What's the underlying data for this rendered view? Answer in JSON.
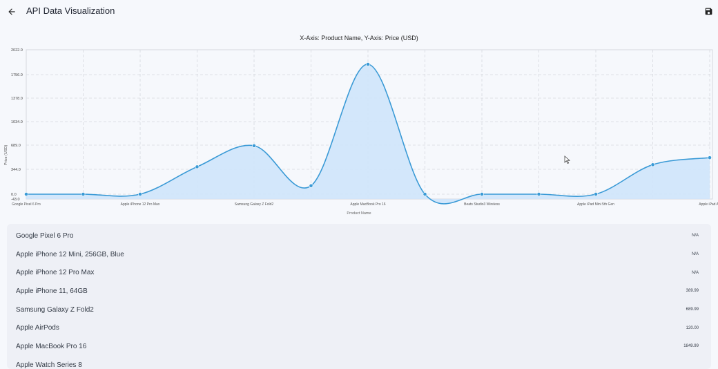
{
  "header": {
    "title": "API Data Visualization",
    "back_icon": "arrow-left-icon",
    "save_icon": "floppy-disk-icon"
  },
  "colors": {
    "line": "#3a9ad6",
    "fill": "#cfe4fb",
    "grid": "#d5d8de",
    "background": "#f6f8fc",
    "card": "#eef0f6"
  },
  "chart_data": {
    "type": "area",
    "title": "X-Axis: Product Name, Y-Axis: Price (USD)",
    "xlabel": "Product Name",
    "ylabel": "Price (USD)",
    "ylim": [
      -43.0,
      2022.0
    ],
    "grid": true,
    "yticks": [
      "-43.0",
      "0.0",
      "344.0",
      "689.0",
      "1034.0",
      "1378.0",
      "1756.0",
      "2022.0"
    ],
    "categories": [
      "Google Pixel 6 Pro",
      "Apple iPhone 12 Mini, 256GB, Blue",
      "Apple iPhone 12 Pro Max",
      "Apple iPhone 11, 64GB",
      "Samsung Galaxy Z Fold2",
      "Apple AirPods",
      "Apple MacBook Pro 16",
      "Apple Watch Series 8",
      "Beats Studio3 Wireless",
      "Apple iPad Mini 5th Gen",
      "Apple iPad Mini 5th Gen",
      "Apple iPad Air",
      "Apple iPad Air"
    ],
    "xticklabels": [
      "Google Pixel 6 Pro",
      "Apple iPhone 12 Pro Max",
      "Samsung Galaxy Z Fold2",
      "Apple MacBook Pro 16",
      "Beats Studio3 Wireless",
      "Apple iPad Mini 5th Gen",
      "Apple iPad Air"
    ],
    "series": [
      {
        "values": [
          0,
          0,
          0,
          389.99,
          689.99,
          120.0,
          1849.99,
          0,
          0,
          0,
          0,
          419.99,
          519.99
        ]
      }
    ]
  },
  "list": {
    "items": [
      {
        "name": "Google Pixel 6 Pro",
        "price": "N/A"
      },
      {
        "name": "Apple iPhone 12 Mini, 256GB, Blue",
        "price": "N/A"
      },
      {
        "name": "Apple iPhone 12 Pro Max",
        "price": "N/A"
      },
      {
        "name": "Apple iPhone 11, 64GB",
        "price": "389.99"
      },
      {
        "name": "Samsung Galaxy Z Fold2",
        "price": "689.99"
      },
      {
        "name": "Apple AirPods",
        "price": "120.00"
      },
      {
        "name": "Apple MacBook Pro 16",
        "price": "1849.99"
      },
      {
        "name": "Apple Watch Series 8",
        "price": ""
      }
    ]
  }
}
